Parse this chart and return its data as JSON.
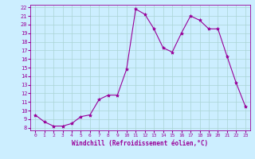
{
  "x": [
    0,
    1,
    2,
    3,
    4,
    5,
    6,
    7,
    8,
    9,
    10,
    11,
    12,
    13,
    14,
    15,
    16,
    17,
    18,
    19,
    20,
    21,
    22,
    23
  ],
  "y": [
    9.5,
    8.7,
    8.2,
    8.2,
    8.5,
    9.3,
    9.5,
    11.3,
    11.8,
    11.8,
    14.8,
    21.8,
    21.2,
    19.5,
    17.3,
    16.8,
    19.0,
    21.0,
    20.5,
    19.5,
    19.5,
    16.3,
    13.2,
    10.5
  ],
  "line_color": "#990099",
  "marker": "*",
  "marker_size": 3,
  "bg_color": "#cceeff",
  "grid_color": "#aad4d4",
  "xlabel": "Windchill (Refroidissement éolien,°C)",
  "xlabel_color": "#990099",
  "ytick_min": 8,
  "ytick_max": 22,
  "figsize": [
    3.2,
    2.0
  ],
  "dpi": 100
}
